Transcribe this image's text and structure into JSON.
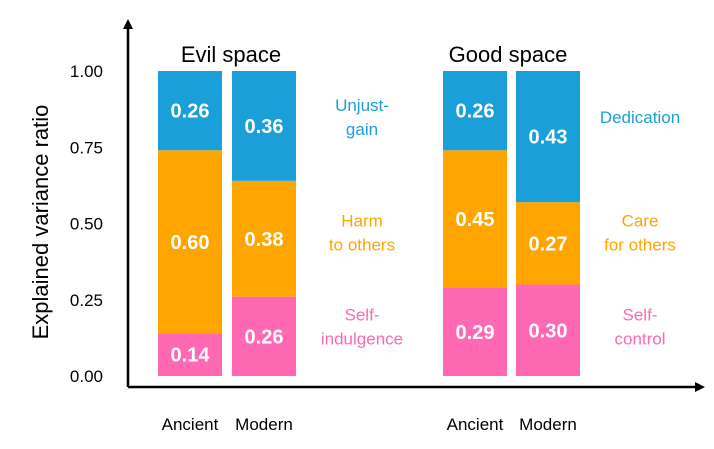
{
  "chart_data": {
    "type": "bar",
    "stacked": true,
    "ylabel": "Explained variance ratio",
    "ylim": [
      0,
      1
    ],
    "yticks": [
      "0.00",
      "0.25",
      "0.50",
      "0.75",
      "1.00"
    ],
    "grid": false,
    "groups": [
      {
        "title": "Evil space",
        "categories": [
          "Ancient",
          "Modern"
        ],
        "series": [
          {
            "label_lines": [
              "Self-",
              "indulgence"
            ],
            "color": "#ff69b4",
            "values": [
              0.14,
              0.26
            ]
          },
          {
            "label_lines": [
              "Harm",
              "to others"
            ],
            "color": "#ffa500",
            "values": [
              0.6,
              0.38
            ]
          },
          {
            "label_lines": [
              "Unjust-",
              "gain"
            ],
            "color": "#1a9fd9",
            "values": [
              0.26,
              0.36
            ]
          }
        ]
      },
      {
        "title": "Good space",
        "categories": [
          "Ancient",
          "Modern"
        ],
        "series": [
          {
            "label_lines": [
              "Self-",
              "control"
            ],
            "color": "#ff69b4",
            "values": [
              0.29,
              0.3
            ]
          },
          {
            "label_lines": [
              "Care",
              "for others"
            ],
            "color": "#ffa500",
            "values": [
              0.45,
              0.27
            ]
          },
          {
            "label_lines": [
              "Dedication"
            ],
            "color": "#1a9fd9",
            "values": [
              0.26,
              0.43
            ]
          }
        ]
      }
    ]
  }
}
